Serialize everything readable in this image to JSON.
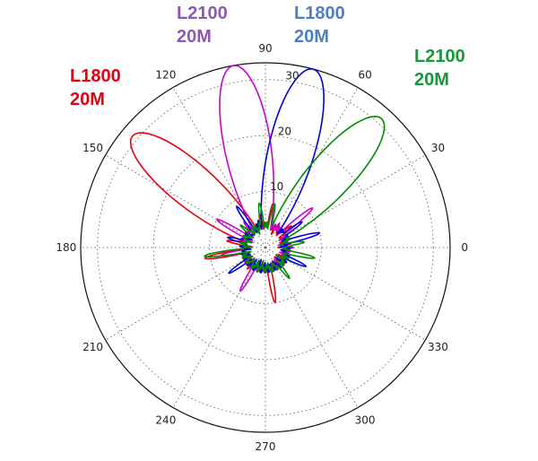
{
  "chart_data": {
    "type": "line",
    "subtype": "polar",
    "grid": true,
    "radial_ticks": [
      10,
      20,
      30
    ],
    "radial_max": 33,
    "angular_ticks": [
      0,
      30,
      60,
      90,
      120,
      150,
      180,
      210,
      240,
      270,
      300,
      330
    ],
    "series": [
      {
        "id": "s1",
        "color": "#e8000f",
        "main_lobe_deg": 140,
        "peak": 31
      },
      {
        "id": "s2",
        "color": "#cc00cc",
        "main_lobe_deg": 100,
        "peak": 33
      },
      {
        "id": "s3",
        "color": "#0000dd",
        "main_lobe_deg": 75,
        "peak": 33
      },
      {
        "id": "s4",
        "color": "#008c00",
        "main_lobe_deg": 48,
        "peak": 31
      }
    ]
  },
  "legend": [
    {
      "line1": "L1800",
      "line2": "20M",
      "color": "#e8000f"
    },
    {
      "line1": "L2100",
      "line2": "20M",
      "color": "#8e5ab0"
    },
    {
      "line1": "L1800",
      "line2": "20M",
      "color": "#4f7ec2"
    },
    {
      "line1": "L2100",
      "line2": "20M",
      "color": "#159a3b"
    }
  ]
}
